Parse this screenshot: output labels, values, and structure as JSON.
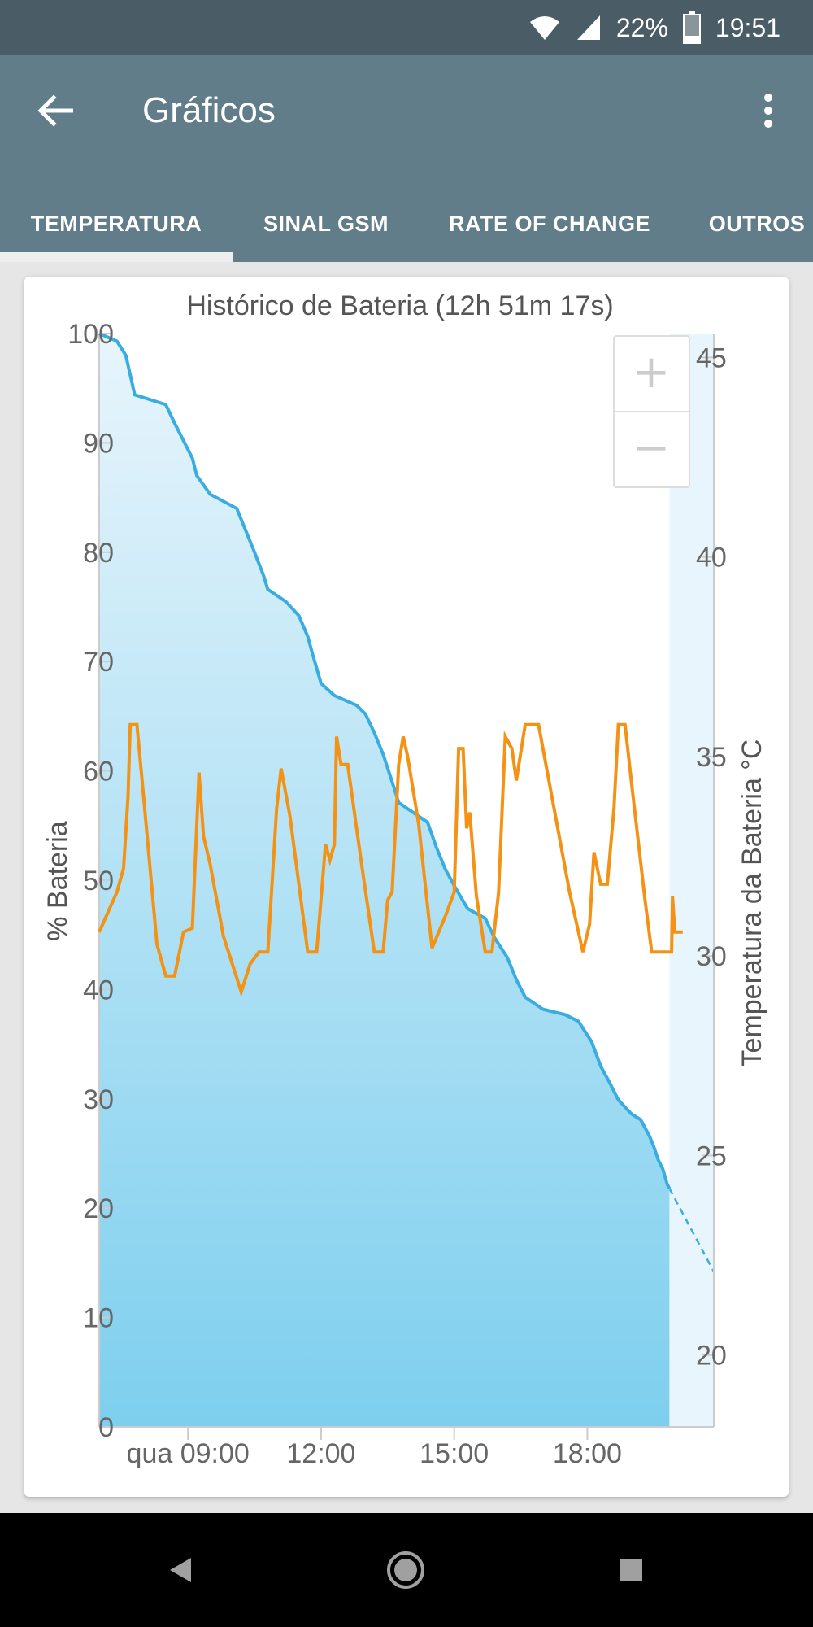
{
  "status_bar": {
    "battery_percent": "22%",
    "time": "19:51"
  },
  "appbar": {
    "title": "Gráficos"
  },
  "tabs": [
    {
      "label": "TEMPERATURA"
    },
    {
      "label": "SINAL GSM"
    },
    {
      "label": "RATE OF CHANGE"
    },
    {
      "label": "OUTROS"
    }
  ],
  "colors": {
    "battery_line": "#3aade0",
    "temperature_line": "#f39214",
    "appbar": "#627d8a",
    "status_bar": "#4a5c66"
  },
  "chart_data": {
    "type": "line",
    "title": "Histórico de Bateria (12h 51m 17s)",
    "ylabel": "% Bateria",
    "y2label": "Temperatura da Bateria °C",
    "ylim": [
      0,
      100
    ],
    "y2lim": [
      18.2,
      45.6
    ],
    "y_ticks": [
      "0",
      "10",
      "20",
      "30",
      "40",
      "50",
      "60",
      "70",
      "80",
      "90",
      "100"
    ],
    "y2_ticks": [
      "20",
      "25",
      "30",
      "35",
      "40",
      "45"
    ],
    "x_ticks": [
      {
        "label": "qua 09:00",
        "x": 9.0
      },
      {
        "label": "12:00",
        "x": 12.0
      },
      {
        "label": "15:00",
        "x": 15.0
      },
      {
        "label": "18:00",
        "x": 18.0
      }
    ],
    "xlim": [
      7.0,
      20.85
    ],
    "series": [
      {
        "name": "Bateria",
        "axis": "left",
        "points": [
          [
            7.0,
            100
          ],
          [
            7.4,
            99.3
          ],
          [
            7.6,
            98
          ],
          [
            7.8,
            94.4
          ],
          [
            8.5,
            93.5
          ],
          [
            8.7,
            91.8
          ],
          [
            9.1,
            88.6
          ],
          [
            9.2,
            87
          ],
          [
            9.5,
            85.3
          ],
          [
            10.1,
            84
          ],
          [
            10.5,
            80
          ],
          [
            10.7,
            77.9
          ],
          [
            10.8,
            76.6
          ],
          [
            11.2,
            75.5
          ],
          [
            11.5,
            74.2
          ],
          [
            11.7,
            72.3
          ],
          [
            11.8,
            70.8
          ],
          [
            12.0,
            68
          ],
          [
            12.3,
            66.9
          ],
          [
            12.8,
            66
          ],
          [
            13.0,
            65.2
          ],
          [
            13.2,
            63.5
          ],
          [
            13.4,
            61.5
          ],
          [
            13.6,
            59
          ],
          [
            13.75,
            57.1
          ],
          [
            14.0,
            56.4
          ],
          [
            14.4,
            55.3
          ],
          [
            14.6,
            53
          ],
          [
            14.8,
            51
          ],
          [
            15.0,
            49.5
          ],
          [
            15.3,
            47.4
          ],
          [
            15.7,
            46.5
          ],
          [
            15.9,
            44.8
          ],
          [
            16.2,
            42.9
          ],
          [
            16.4,
            40.9
          ],
          [
            16.6,
            39.3
          ],
          [
            17.0,
            38.2
          ],
          [
            17.5,
            37.7
          ],
          [
            17.8,
            37.1
          ],
          [
            18.1,
            35.2
          ],
          [
            18.3,
            33
          ],
          [
            18.5,
            31.5
          ],
          [
            18.7,
            29.9
          ],
          [
            19.0,
            28.6
          ],
          [
            19.2,
            28.1
          ],
          [
            19.4,
            26.6
          ],
          [
            19.5,
            25.6
          ],
          [
            19.6,
            24.4
          ],
          [
            19.7,
            23.6
          ],
          [
            19.8,
            22.2
          ],
          [
            19.85,
            21.8
          ]
        ],
        "projection": [
          [
            19.85,
            21.8
          ],
          [
            20.85,
            14.2
          ]
        ]
      },
      {
        "name": "Temperatura",
        "axis": "right",
        "points": [
          [
            7.0,
            30.6
          ],
          [
            7.2,
            31.1
          ],
          [
            7.4,
            31.6
          ],
          [
            7.55,
            32.2
          ],
          [
            7.65,
            34
          ],
          [
            7.7,
            35.8
          ],
          [
            7.85,
            35.8
          ],
          [
            8.0,
            34
          ],
          [
            8.3,
            30.3
          ],
          [
            8.5,
            29.5
          ],
          [
            8.7,
            29.5
          ],
          [
            8.9,
            30.6
          ],
          [
            9.1,
            30.7
          ],
          [
            9.25,
            34.6
          ],
          [
            9.35,
            33
          ],
          [
            9.5,
            32.3
          ],
          [
            9.8,
            30.5
          ],
          [
            10.2,
            29.1
          ],
          [
            10.4,
            29.8
          ],
          [
            10.6,
            30.1
          ],
          [
            10.8,
            30.1
          ],
          [
            11.0,
            33.7
          ],
          [
            11.1,
            34.7
          ],
          [
            11.3,
            33.5
          ],
          [
            11.7,
            30.1
          ],
          [
            11.9,
            30.1
          ],
          [
            12.1,
            32.8
          ],
          [
            12.2,
            32.4
          ],
          [
            12.3,
            32.8
          ],
          [
            12.35,
            35.5
          ],
          [
            12.45,
            34.8
          ],
          [
            12.6,
            34.8
          ],
          [
            12.9,
            32.4
          ],
          [
            13.2,
            30.1
          ],
          [
            13.4,
            30.1
          ],
          [
            13.5,
            31.4
          ],
          [
            13.6,
            31.6
          ],
          [
            13.75,
            34.8
          ],
          [
            13.85,
            35.5
          ],
          [
            13.95,
            35
          ],
          [
            14.2,
            33.3
          ],
          [
            14.5,
            30.2
          ],
          [
            14.65,
            30.6
          ],
          [
            14.8,
            31
          ],
          [
            15.0,
            31.6
          ],
          [
            15.1,
            35.2
          ],
          [
            15.2,
            35.2
          ],
          [
            15.28,
            33.2
          ],
          [
            15.35,
            33.6
          ],
          [
            15.5,
            31.5
          ],
          [
            15.7,
            30.1
          ],
          [
            15.85,
            30.1
          ],
          [
            16.0,
            31.6
          ],
          [
            16.15,
            35.5
          ],
          [
            16.3,
            35.2
          ],
          [
            16.4,
            34.4
          ],
          [
            16.6,
            35.8
          ],
          [
            16.9,
            35.8
          ],
          [
            17.1,
            34.6
          ],
          [
            17.6,
            31.6
          ],
          [
            17.9,
            30.1
          ],
          [
            18.05,
            30.8
          ],
          [
            18.15,
            32.6
          ],
          [
            18.3,
            31.8
          ],
          [
            18.45,
            31.8
          ],
          [
            18.6,
            33.7
          ],
          [
            18.7,
            35.8
          ],
          [
            18.85,
            35.8
          ],
          [
            19.0,
            34.3
          ],
          [
            19.3,
            31.4
          ],
          [
            19.45,
            30.1
          ],
          [
            19.65,
            30.1
          ],
          [
            19.9,
            30.1
          ],
          [
            19.92,
            31.5
          ],
          [
            19.97,
            30.6
          ],
          [
            20.15,
            30.6
          ]
        ]
      }
    ],
    "grid": false,
    "zoom_controls": {
      "plus": "+",
      "minus": "−"
    }
  }
}
